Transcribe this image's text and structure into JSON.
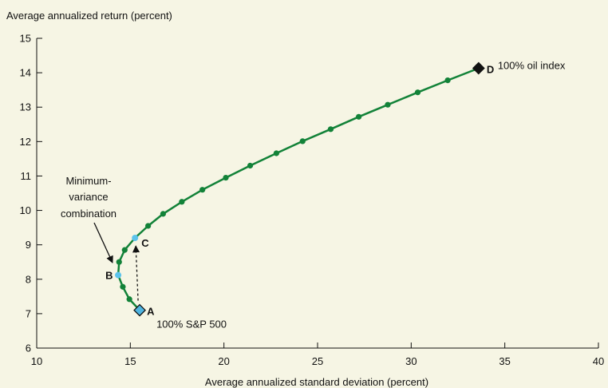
{
  "chart_data": {
    "type": "line",
    "xlabel": "Average annualized standard deviation (percent)",
    "ylabel": "Average annualized return (percent)",
    "xlim": [
      10,
      40
    ],
    "ylim": [
      6,
      15
    ],
    "xticks": [
      10,
      15,
      20,
      25,
      30,
      35,
      40
    ],
    "yticks": [
      6,
      7,
      8,
      9,
      10,
      11,
      12,
      13,
      14,
      15
    ],
    "grid": false,
    "series": [
      {
        "values": [
          {
            "x": 15.5,
            "y": 7.1
          },
          {
            "x": 14.95,
            "y": 7.42
          },
          {
            "x": 14.6,
            "y": 7.78
          },
          {
            "x": 14.35,
            "y": 8.12
          },
          {
            "x": 14.4,
            "y": 8.5
          },
          {
            "x": 14.7,
            "y": 8.85
          },
          {
            "x": 15.25,
            "y": 9.2
          },
          {
            "x": 15.95,
            "y": 9.55
          },
          {
            "x": 16.75,
            "y": 9.9
          },
          {
            "x": 17.75,
            "y": 10.25
          },
          {
            "x": 18.85,
            "y": 10.6
          },
          {
            "x": 20.1,
            "y": 10.95
          },
          {
            "x": 21.4,
            "y": 11.3
          },
          {
            "x": 22.8,
            "y": 11.66
          },
          {
            "x": 24.2,
            "y": 12.01
          },
          {
            "x": 25.7,
            "y": 12.36
          },
          {
            "x": 27.2,
            "y": 12.72
          },
          {
            "x": 28.75,
            "y": 13.07
          },
          {
            "x": 30.35,
            "y": 13.43
          },
          {
            "x": 31.95,
            "y": 13.78
          },
          {
            "x": 33.6,
            "y": 14.13
          }
        ]
      }
    ],
    "colors": {
      "background": "#f6f5e4",
      "line": "#128238",
      "highlight": "#5bc3ec",
      "endpoint_oil": "#111111",
      "endpoint_sp": "#4fb4e0"
    },
    "labeled_points": [
      {
        "label": "A",
        "x": 15.5,
        "y": 7.1,
        "marker": "diamond",
        "color": "#4fb4e0",
        "annotation": "100% S&P 500"
      },
      {
        "label": "B",
        "x": 14.35,
        "y": 8.12,
        "marker": "circle",
        "color": "#5bc3ec",
        "annotation": ""
      },
      {
        "label": "C",
        "x": 15.25,
        "y": 9.2,
        "marker": "circle",
        "color": "#5bc3ec",
        "annotation": ""
      },
      {
        "label": "D",
        "x": 33.6,
        "y": 14.13,
        "marker": "diamond",
        "color": "#111111",
        "annotation": "100% oil index"
      }
    ],
    "annotations": {
      "min_variance": [
        "Minimum-",
        "variance",
        "combination"
      ],
      "dashed_arrow": {
        "from": "A",
        "to": "C"
      }
    }
  }
}
